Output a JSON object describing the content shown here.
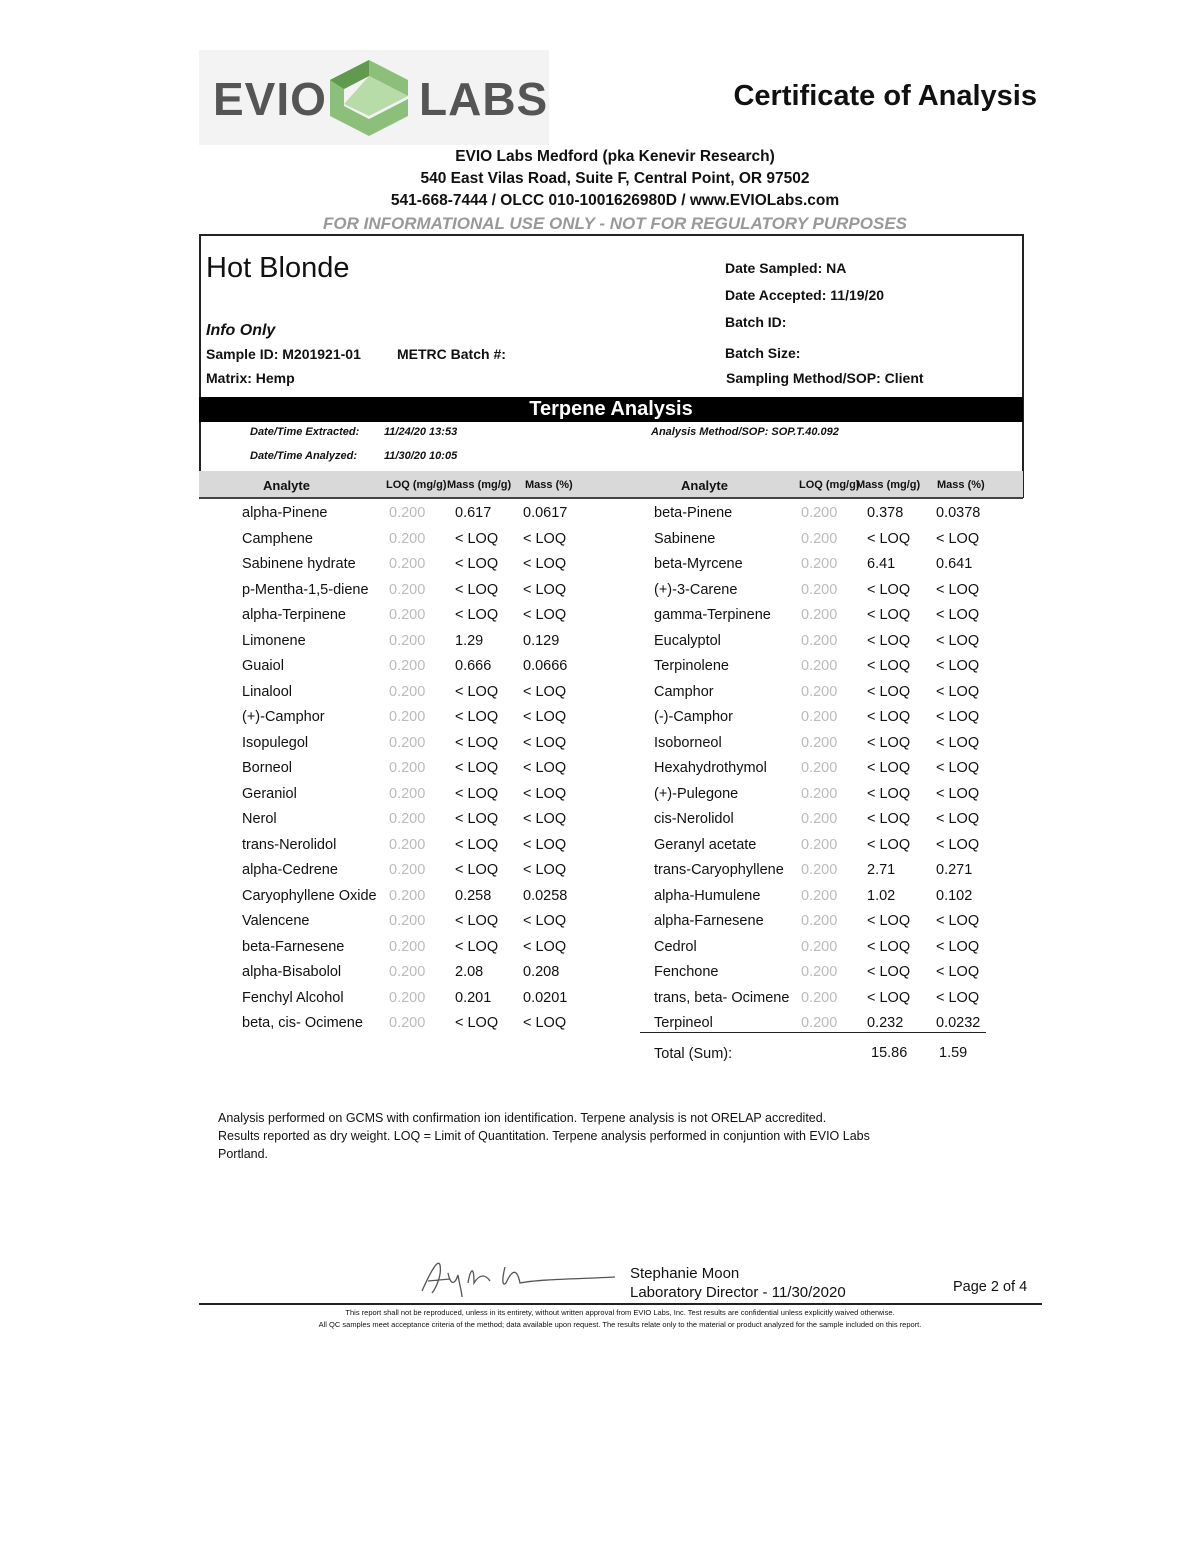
{
  "header": {
    "logo_left": "EVIO",
    "logo_right": "LABS",
    "title": "Certificate of Analysis",
    "lab_name": "EVIO Labs Medford (pka Kenevir Research)",
    "address": "540 East Vilas Road, Suite F, Central Point, OR 97502",
    "contact": "541-668-7444 / OLCC 010-1001626980D / www.EVIOLabs.com",
    "disclaimer": "FOR INFORMATIONAL USE ONLY - NOT FOR REGULATORY PURPOSES",
    "brand_color": "#7fb069"
  },
  "sample": {
    "name": "Hot Blonde",
    "info": "Info Only",
    "sample_id": "Sample ID:  M201921-01",
    "metrc": "METRC Batch #:",
    "matrix": "Matrix:  Hemp",
    "date_sampled": "Date Sampled: NA",
    "date_accepted": "Date Accepted:  11/19/20",
    "batch_id": "Batch ID:",
    "batch_size": "Batch Size:",
    "sampling": "Sampling Method/SOP: Client"
  },
  "analysis": {
    "title": "Terpene Analysis",
    "extracted_label": "Date/Time Extracted:",
    "extracted": "11/24/20  13:53",
    "analyzed_label": "Date/Time  Analyzed:",
    "analyzed": "11/30/20  10:05",
    "method": "Analysis Method/SOP: SOP.T.40.092"
  },
  "columns": {
    "analyte": "Analyte",
    "loq": "LOQ (mg/g)",
    "mass": "Mass (mg/g)",
    "pct": "Mass (%)"
  },
  "left_rows": [
    [
      "alpha-Pinene",
      "0.200",
      "0.617",
      "0.0617"
    ],
    [
      "Camphene",
      "0.200",
      "< LOQ",
      "< LOQ"
    ],
    [
      "Sabinene hydrate",
      "0.200",
      "< LOQ",
      "< LOQ"
    ],
    [
      "p-Mentha-1,5-diene",
      "0.200",
      "< LOQ",
      "< LOQ"
    ],
    [
      "alpha-Terpinene",
      "0.200",
      "< LOQ",
      "< LOQ"
    ],
    [
      "Limonene",
      "0.200",
      "1.29",
      "0.129"
    ],
    [
      "Guaiol",
      "0.200",
      "0.666",
      "0.0666"
    ],
    [
      "Linalool",
      "0.200",
      "< LOQ",
      "< LOQ"
    ],
    [
      "(+)-Camphor",
      "0.200",
      "< LOQ",
      "< LOQ"
    ],
    [
      "Isopulegol",
      "0.200",
      "< LOQ",
      "< LOQ"
    ],
    [
      "Borneol",
      "0.200",
      "< LOQ",
      "< LOQ"
    ],
    [
      "Geraniol",
      "0.200",
      "< LOQ",
      "< LOQ"
    ],
    [
      "Nerol",
      "0.200",
      "< LOQ",
      "< LOQ"
    ],
    [
      "trans-Nerolidol",
      "0.200",
      "< LOQ",
      "< LOQ"
    ],
    [
      "alpha-Cedrene",
      "0.200",
      "< LOQ",
      "< LOQ"
    ],
    [
      "Caryophyllene Oxide",
      "0.200",
      "0.258",
      "0.0258"
    ],
    [
      "Valencene",
      "0.200",
      "< LOQ",
      "< LOQ"
    ],
    [
      "beta-Farnesene",
      "0.200",
      "< LOQ",
      "< LOQ"
    ],
    [
      "alpha-Bisabolol",
      "0.200",
      "2.08",
      "0.208"
    ],
    [
      "Fenchyl Alcohol",
      "0.200",
      "0.201",
      "0.0201"
    ],
    [
      "beta, cis- Ocimene",
      "0.200",
      "< LOQ",
      "< LOQ"
    ]
  ],
  "right_rows": [
    [
      "beta-Pinene",
      "0.200",
      "0.378",
      "0.0378"
    ],
    [
      "Sabinene",
      "0.200",
      "< LOQ",
      "< LOQ"
    ],
    [
      "beta-Myrcene",
      "0.200",
      "6.41",
      "0.641"
    ],
    [
      "(+)-3-Carene",
      "0.200",
      "< LOQ",
      "< LOQ"
    ],
    [
      "gamma-Terpinene",
      "0.200",
      "< LOQ",
      "< LOQ"
    ],
    [
      "Eucalyptol",
      "0.200",
      "< LOQ",
      "< LOQ"
    ],
    [
      "Terpinolene",
      "0.200",
      "< LOQ",
      "< LOQ"
    ],
    [
      "Camphor",
      "0.200",
      "< LOQ",
      "< LOQ"
    ],
    [
      "(-)-Camphor",
      "0.200",
      "< LOQ",
      "< LOQ"
    ],
    [
      "Isoborneol",
      "0.200",
      "< LOQ",
      "< LOQ"
    ],
    [
      "Hexahydrothymol",
      "0.200",
      "< LOQ",
      "< LOQ"
    ],
    [
      "(+)-Pulegone",
      "0.200",
      "< LOQ",
      "< LOQ"
    ],
    [
      "cis-Nerolidol",
      "0.200",
      "< LOQ",
      "< LOQ"
    ],
    [
      "Geranyl acetate",
      "0.200",
      "< LOQ",
      "< LOQ"
    ],
    [
      "trans-Caryophyllene",
      "0.200",
      "2.71",
      "0.271"
    ],
    [
      "alpha-Humulene",
      "0.200",
      "1.02",
      "0.102"
    ],
    [
      "alpha-Farnesene",
      "0.200",
      "< LOQ",
      "< LOQ"
    ],
    [
      "Cedrol",
      "0.200",
      "< LOQ",
      "< LOQ"
    ],
    [
      "Fenchone",
      "0.200",
      "< LOQ",
      "< LOQ"
    ],
    [
      "trans, beta- Ocimene",
      "0.200",
      "< LOQ",
      "< LOQ"
    ],
    [
      "Terpineol",
      "0.200",
      "0.232",
      "0.0232"
    ]
  ],
  "total": {
    "label": "Total (Sum):",
    "mass": "15.86",
    "pct": "1.59"
  },
  "notes": [
    "Analysis performed on GCMS with confirmation ion identification. Terpene analysis is not ORELAP accredited.",
    "Results reported as dry weight. LOQ = Limit of Quantitation. Terpene analysis performed in conjuntion with EVIO Labs",
    "Portland."
  ],
  "footer": {
    "signer": "Stephanie Moon",
    "role": "Laboratory Director - 11/30/2020",
    "page": "Page 2 of 4",
    "fine1": "This report shall not be reproduced, unless in its entirety, without written approval from EVIO Labs, Inc.  Test results are confidential unless explicitly waived otherwise.",
    "fine2": "All QC samples meet acceptance criteria of the method; data available upon request. The results relate only to the material or product analyzed for the sample included on this report."
  }
}
